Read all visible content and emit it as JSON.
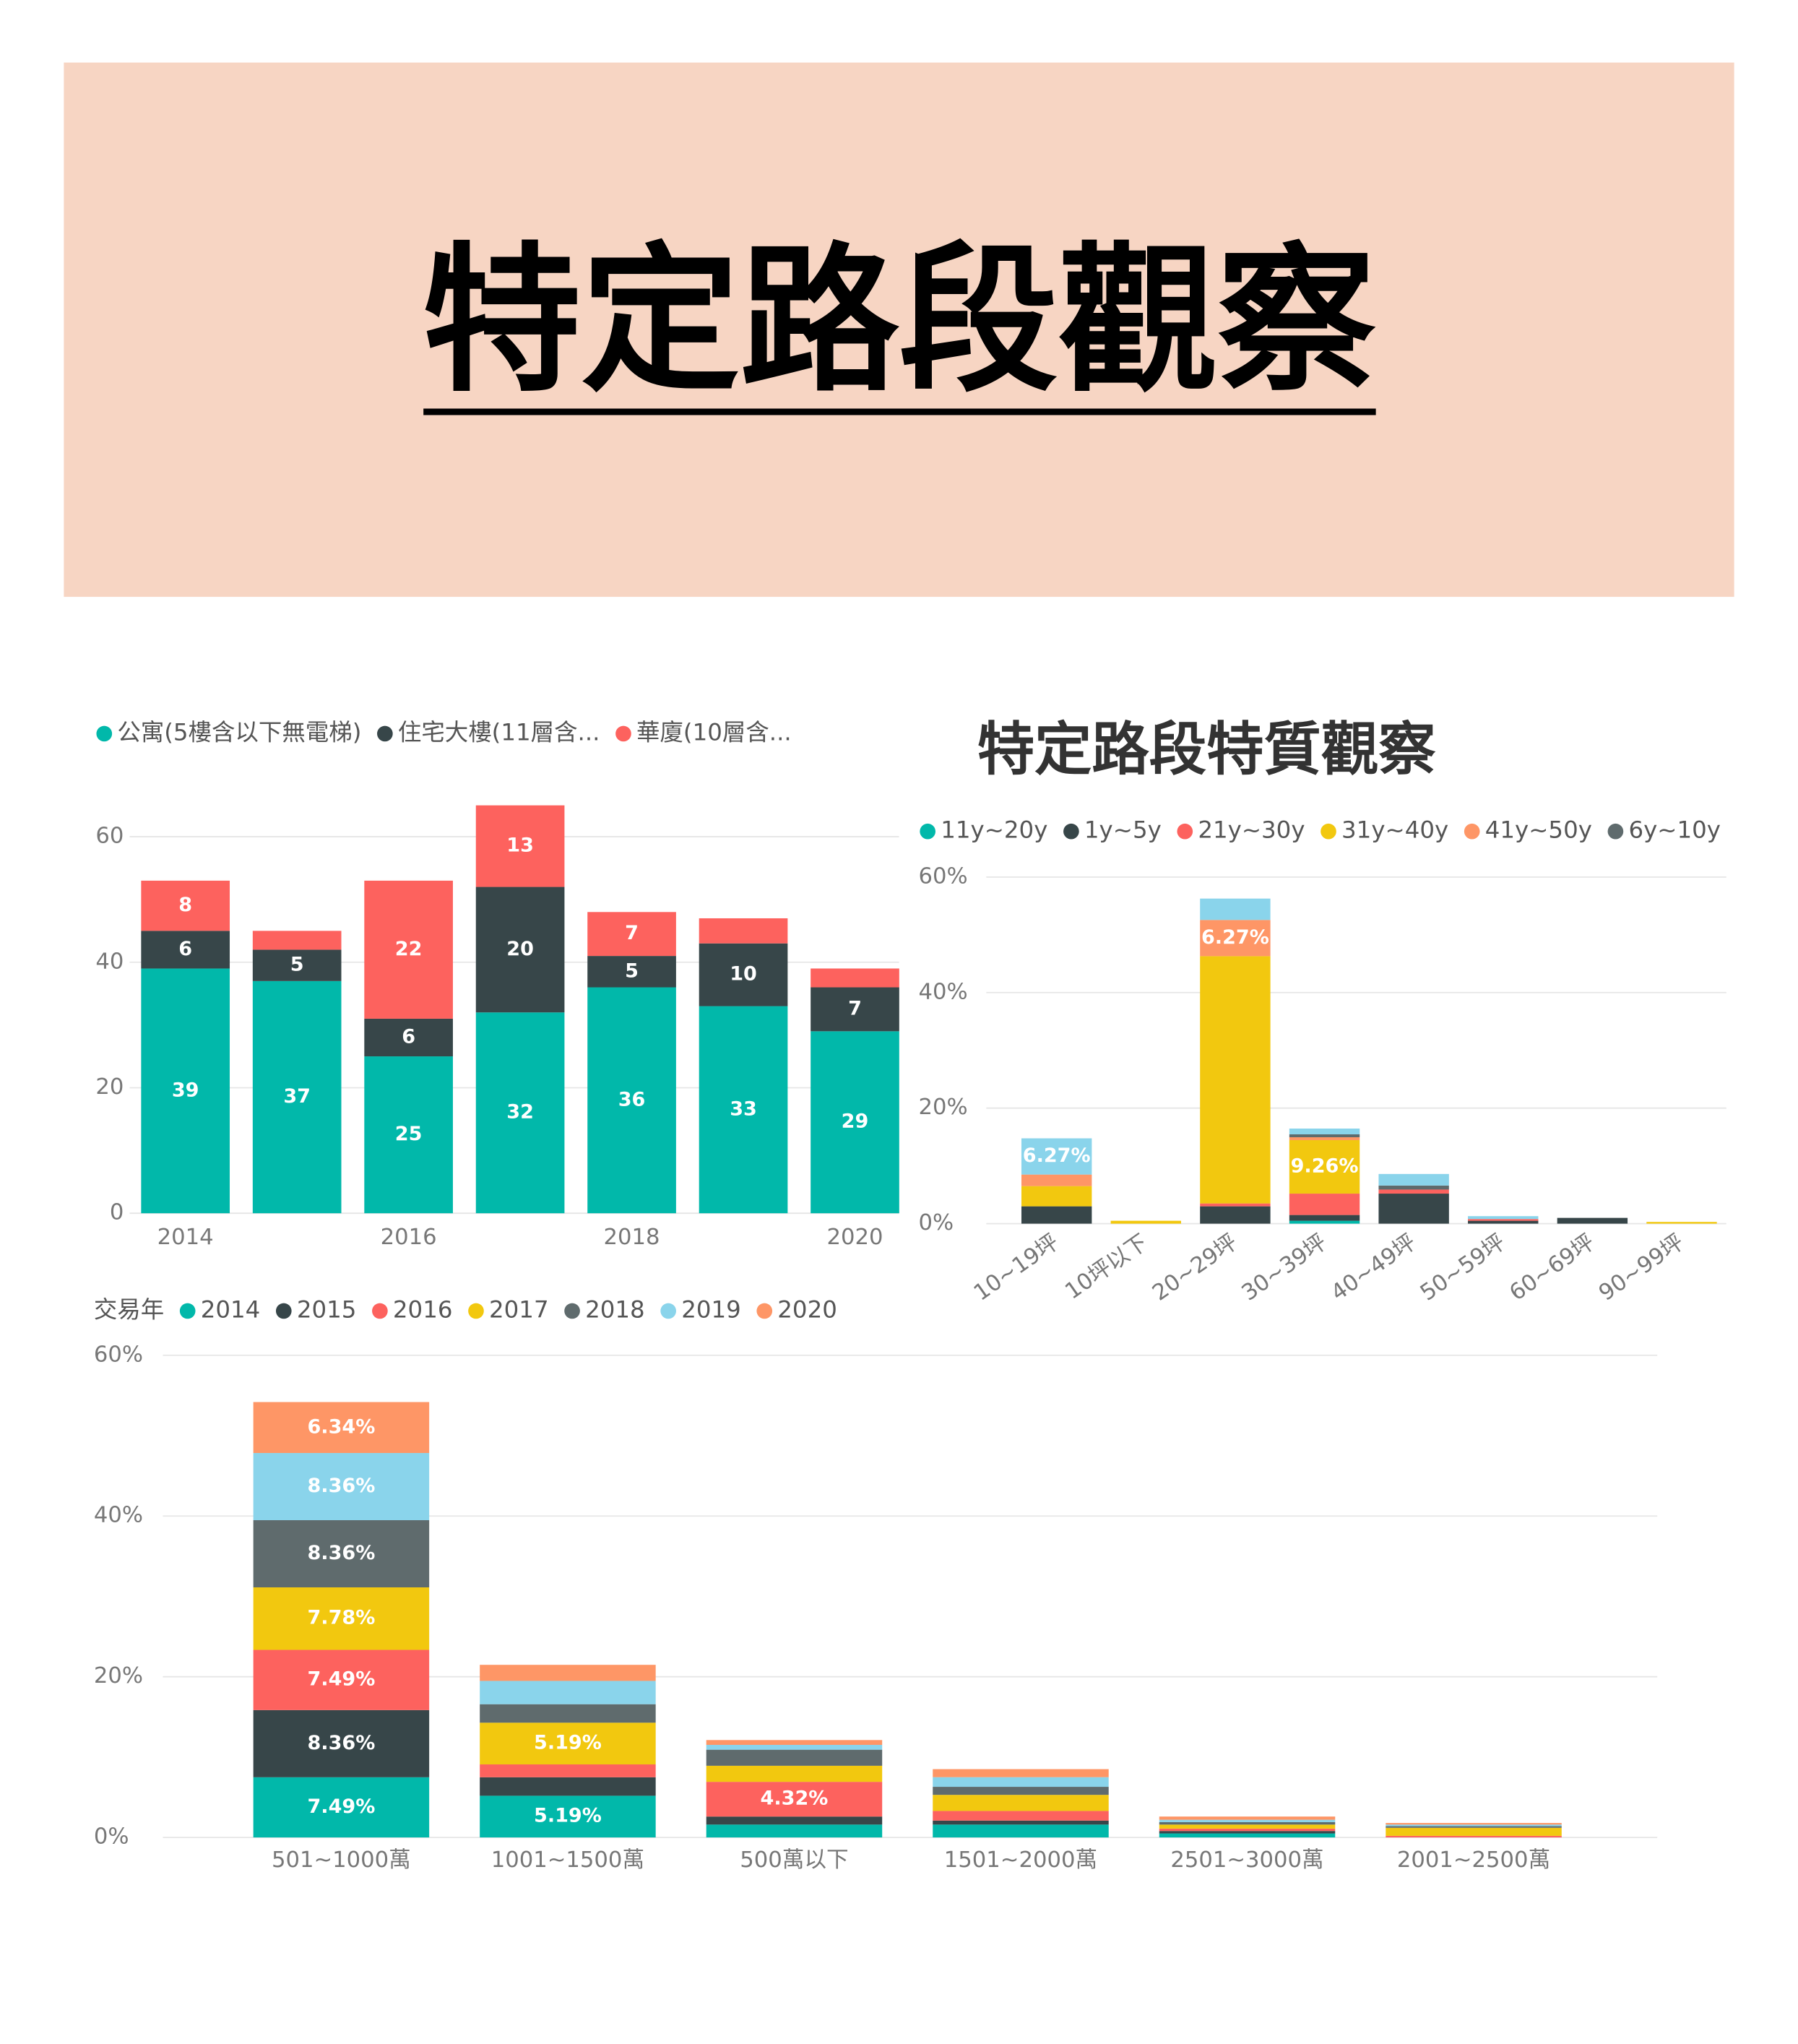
{
  "header": {
    "title": "特定路段觀察"
  },
  "chart_data": [
    {
      "type": "stacked_bar",
      "categories": [
        "2014",
        null,
        "2016",
        null,
        "2018",
        null,
        "2020"
      ],
      "series": [
        {
          "name": "公寓(5樓含以下無電梯)",
          "color": "#01b8aa",
          "values": [
            39,
            37,
            25,
            32,
            36,
            33,
            29
          ]
        },
        {
          "name": "住宅大樓(11層含...",
          "color": "#374649",
          "values": [
            6,
            5,
            6,
            20,
            5,
            10,
            7
          ]
        },
        {
          "name": "華廈(10層含...",
          "color": "#fd625e",
          "values": [
            8,
            3,
            22,
            13,
            7,
            4,
            3
          ]
        }
      ],
      "ylim": [
        0,
        65
      ],
      "yticks": [
        0,
        20,
        40,
        60
      ],
      "grid": true,
      "legend": "top"
    },
    {
      "type": "stacked_bar",
      "title": "特定路段特質觀察",
      "categories": [
        "10~19坪",
        "10坪以下",
        "20~29坪",
        "30~39坪",
        "40~49坪",
        "50~59坪",
        "60~69坪",
        "90~99坪"
      ],
      "series": [
        {
          "name": "11y~20y",
          "color": "#01b8aa",
          "values": [
            0,
            0,
            0,
            0.5,
            0,
            0,
            0,
            0
          ]
        },
        {
          "name": "1y~5y",
          "color": "#374649",
          "values": [
            3,
            0,
            3,
            1,
            5.2,
            0.5,
            1,
            0
          ]
        },
        {
          "name": "21y~30y",
          "color": "#fd625e",
          "values": [
            0,
            0,
            0.5,
            3.7,
            0.7,
            0.3,
            0,
            0
          ]
        },
        {
          "name": "31y~40y",
          "color": "#f2c80f",
          "values": [
            3.5,
            0.5,
            42.8,
            9.26,
            0,
            0,
            0,
            0.3
          ],
          "value_labels": [
            null,
            null,
            null,
            "9.26%",
            null,
            null,
            null,
            null
          ]
        },
        {
          "name": "41y~50y",
          "color": "#fe9666",
          "values": [
            2,
            0,
            6.27,
            0.5,
            0,
            0,
            0,
            0
          ],
          "value_labels": [
            null,
            null,
            "6.27%",
            null,
            null,
            null,
            null,
            null
          ]
        },
        {
          "name": "6y~10y",
          "color": "#5f6b6d",
          "values": [
            0,
            0,
            0,
            0.5,
            0.7,
            0,
            0,
            0
          ]
        },
        {
          "color": "#8ad4eb",
          "values": [
            6.27,
            0,
            3.7,
            1,
            2,
            0.5,
            0,
            0
          ],
          "value_labels": [
            "6.27%",
            null,
            null,
            null,
            null,
            null,
            null,
            null
          ]
        }
      ],
      "ylim": [
        0,
        60
      ],
      "yticks": [
        {
          "value": 0,
          "label": "0%"
        },
        {
          "value": 20,
          "label": "20%"
        },
        {
          "value": 40,
          "label": "40%"
        },
        {
          "value": 60,
          "label": "60%"
        }
      ],
      "grid": true,
      "legend": "top"
    },
    {
      "type": "stacked_bar",
      "legend_title": "交易年",
      "categories": [
        "501~1000萬",
        "1001~1500萬",
        "500萬以下",
        "1501~2000萬",
        "2501~3000萬",
        "2001~2500萬"
      ],
      "series": [
        {
          "name": "2014",
          "color": "#01b8aa",
          "values": [
            7.49,
            5.19,
            1.6,
            1.6,
            0.5,
            0
          ],
          "value_labels": [
            "7.49%",
            "5.19%",
            null,
            null,
            null,
            null
          ]
        },
        {
          "name": "2015",
          "color": "#374649",
          "values": [
            8.36,
            2.3,
            1.0,
            0.5,
            0.3,
            0
          ],
          "value_labels": [
            "8.36%",
            null,
            null,
            null,
            null,
            null
          ]
        },
        {
          "name": "2016",
          "color": "#fd625e",
          "values": [
            7.49,
            1.6,
            4.32,
            1.2,
            0.3,
            0.2
          ],
          "value_labels": [
            "7.49%",
            null,
            "4.32%",
            null,
            null,
            null
          ]
        },
        {
          "name": "2017",
          "color": "#f2c80f",
          "values": [
            7.78,
            5.19,
            2.0,
            2.0,
            0.5,
            1.0
          ],
          "value_labels": [
            "7.78%",
            "5.19%",
            null,
            null,
            null,
            null
          ]
        },
        {
          "name": "2018",
          "color": "#5f6b6d",
          "values": [
            8.36,
            2.3,
            2.0,
            1.0,
            0.3,
            0.2
          ],
          "value_labels": [
            "8.36%",
            null,
            null,
            null,
            null,
            null
          ]
        },
        {
          "name": "2019",
          "color": "#8ad4eb",
          "values": [
            8.36,
            2.9,
            0.6,
            1.2,
            0.3,
            0.2
          ],
          "value_labels": [
            "8.36%",
            null,
            null,
            null,
            null,
            null
          ]
        },
        {
          "name": "2020",
          "color": "#fe9666",
          "values": [
            6.34,
            2.0,
            0.6,
            1.0,
            0.4,
            0.2
          ],
          "value_labels": [
            "6.34%",
            null,
            null,
            null,
            null,
            null
          ]
        }
      ],
      "ylim": [
        0,
        60
      ],
      "yticks": [
        {
          "value": 0,
          "label": "0%"
        },
        {
          "value": 20,
          "label": "20%"
        },
        {
          "value": 40,
          "label": "40%"
        },
        {
          "value": 60,
          "label": "60%"
        }
      ],
      "grid": true,
      "legend": "top"
    }
  ]
}
